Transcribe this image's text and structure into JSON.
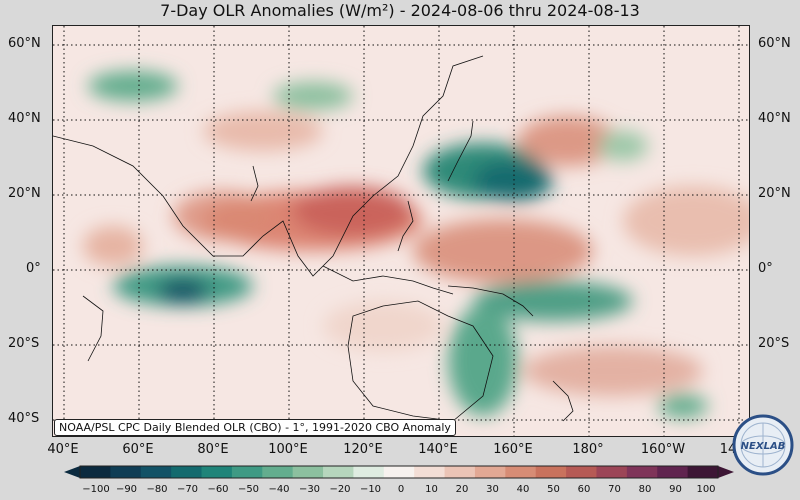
{
  "title": "7-Day OLR Anomalies (W/m²) - 2024-08-06 thru 2024-08-13",
  "credit": "NOAA/PSL CPC Daily Blended OLR (CBO) - 1°, 1991-2020 CBO Anomaly",
  "lat_labels": [
    "60°N",
    "40°N",
    "20°N",
    "0°",
    "20°S",
    "40°S"
  ],
  "lon_labels": [
    "40°E",
    "60°E",
    "80°E",
    "100°E",
    "120°E",
    "140°E",
    "160°E",
    "180°",
    "160°W",
    "14"
  ],
  "colorbar": {
    "ticks": [
      "−100",
      "−90",
      "−80",
      "−70",
      "−60",
      "−50",
      "−40",
      "−30",
      "−20",
      "−10",
      "0",
      "10",
      "20",
      "30",
      "40",
      "50",
      "60",
      "70",
      "80",
      "90",
      "100"
    ],
    "colors": [
      "#0b2a3f",
      "#0f3d55",
      "#125266",
      "#136a6e",
      "#1f8479",
      "#3f9a84",
      "#63ad8e",
      "#8cc09f",
      "#b6d6bd",
      "#dfece1",
      "#f7f2ef",
      "#f3ded6",
      "#ebc4b6",
      "#e2a894",
      "#d78c75",
      "#c9725d",
      "#b65a55",
      "#9c4557",
      "#7f3459",
      "#60244f",
      "#3d1635"
    ]
  },
  "logo_text": "NEXLAB",
  "colors": {
    "background": "#d9d9d9",
    "positive": "#d97a66",
    "negative": "#2e8a78"
  }
}
